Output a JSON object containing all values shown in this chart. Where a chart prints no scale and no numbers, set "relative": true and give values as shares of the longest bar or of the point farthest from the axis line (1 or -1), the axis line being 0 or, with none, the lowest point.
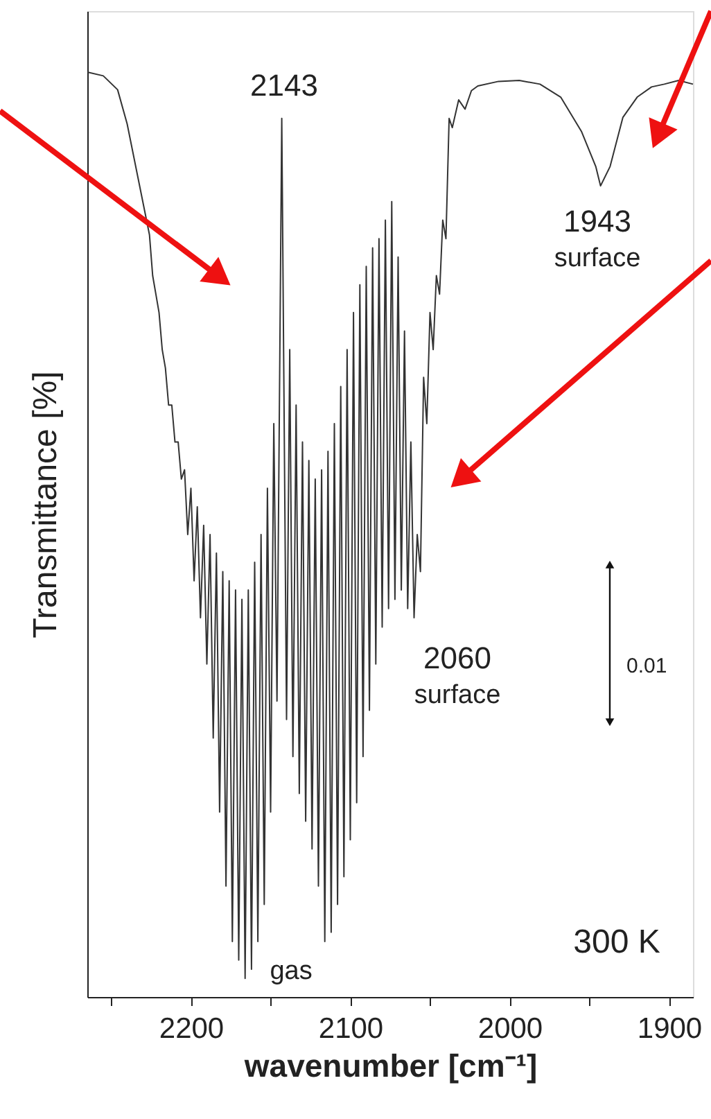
{
  "chart_data": {
    "type": "line",
    "relative": true,
    "xlabel": "wavenumber [cm⁻¹]",
    "ylabel": "Transmittance [%]",
    "xlim": [
      2265,
      1885
    ],
    "xticks": [
      {
        "value": 2250,
        "label": null
      },
      2200,
      {
        "value": 2150,
        "label": null
      },
      2100,
      {
        "value": 2050,
        "label": null
      },
      2000,
      {
        "value": 1950,
        "label": null
      },
      1900
    ],
    "grid": false,
    "marker": "none",
    "line_style": "solid",
    "series": [
      {
        "color": "#333333",
        "x": [
          2265,
          2255,
          2246,
          2240,
          2233,
          2226,
          2224,
          2222,
          2220,
          2218,
          2216,
          2214,
          2212,
          2210,
          2208,
          2206,
          2204,
          2202,
          2200,
          2198,
          2196,
          2194,
          2192,
          2190,
          2188,
          2186,
          2184,
          2182,
          2180,
          2178,
          2176,
          2174,
          2172,
          2170,
          2168,
          2166,
          2164,
          2162,
          2160,
          2158,
          2156,
          2154,
          2152,
          2150,
          2148,
          2146,
          2143,
          2140,
          2138,
          2136,
          2134,
          2132,
          2130,
          2128,
          2126,
          2124,
          2122,
          2120,
          2118,
          2116,
          2114,
          2112,
          2110,
          2108,
          2106,
          2104,
          2102,
          2100,
          2098,
          2096,
          2094,
          2092,
          2090,
          2088,
          2086,
          2084,
          2082,
          2080,
          2078,
          2076,
          2074,
          2072,
          2070,
          2068,
          2066,
          2064,
          2062,
          2060,
          2058,
          2056,
          2054,
          2052,
          2050,
          2048,
          2046,
          2044,
          2042,
          2040,
          2038,
          2036,
          2032,
          2028,
          2024,
          2020,
          2007,
          1994,
          1981,
          1968,
          1955,
          1946,
          1943,
          1937,
          1929,
          1920,
          1911,
          1903,
          1894,
          1885
        ],
        "values": [
          1.0,
          0.996,
          0.981,
          0.944,
          0.884,
          0.824,
          0.78,
          0.76,
          0.74,
          0.7,
          0.68,
          0.64,
          0.64,
          0.6,
          0.6,
          0.56,
          0.57,
          0.5,
          0.55,
          0.45,
          0.53,
          0.41,
          0.51,
          0.36,
          0.5,
          0.28,
          0.48,
          0.2,
          0.46,
          0.12,
          0.45,
          0.06,
          0.44,
          0.04,
          0.43,
          0.02,
          0.44,
          0.03,
          0.47,
          0.06,
          0.5,
          0.1,
          0.55,
          0.2,
          0.62,
          0.32,
          0.95,
          0.3,
          0.7,
          0.26,
          0.64,
          0.22,
          0.6,
          0.19,
          0.58,
          0.16,
          0.56,
          0.12,
          0.57,
          0.06,
          0.59,
          0.07,
          0.62,
          0.1,
          0.66,
          0.13,
          0.7,
          0.17,
          0.74,
          0.21,
          0.77,
          0.26,
          0.79,
          0.31,
          0.81,
          0.36,
          0.82,
          0.4,
          0.84,
          0.42,
          0.86,
          0.43,
          0.8,
          0.44,
          0.72,
          0.42,
          0.6,
          0.41,
          0.5,
          0.46,
          0.67,
          0.62,
          0.74,
          0.7,
          0.78,
          0.76,
          0.84,
          0.82,
          0.95,
          0.94,
          0.97,
          0.96,
          0.98,
          0.985,
          0.99,
          0.991,
          0.987,
          0.973,
          0.936,
          0.898,
          0.877,
          0.898,
          0.951,
          0.973,
          0.984,
          0.987,
          0.991,
          0.987
        ]
      }
    ],
    "annotations": [
      "2143",
      "1943\nsurface",
      "2060\nsurface",
      "gas",
      "300 K",
      "0.01"
    ]
  }
}
